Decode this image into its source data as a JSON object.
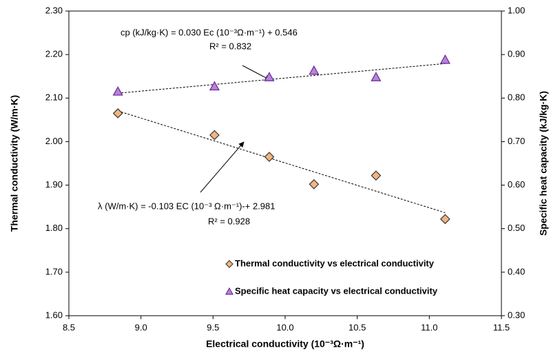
{
  "chart_data": {
    "type": "scatter",
    "xlabel": "Electrical conductivity  (10⁻³Ω·m⁻¹)",
    "ylabel": "Thermal conductivity  (W/m·K)",
    "y2label": "Specific heat capacity  (kJ/kg·K)",
    "xlim": [
      8.5,
      11.5
    ],
    "xticks": [
      {
        "value": 8.5,
        "label": "8.5"
      },
      {
        "value": 9.0,
        "label": "9.0"
      },
      {
        "value": 9.5,
        "label": "9.5"
      },
      {
        "value": 10.0,
        "label": "10.0"
      },
      {
        "value": 10.5,
        "label": "10.5"
      },
      {
        "value": 11.0,
        "label": "11.0"
      },
      {
        "value": 11.5,
        "label": "11.5"
      }
    ],
    "ylim": [
      1.6,
      2.3
    ],
    "yticks": [
      {
        "value": 1.6,
        "label": "1.60"
      },
      {
        "value": 1.7,
        "label": "1.70"
      },
      {
        "value": 1.8,
        "label": "1.80"
      },
      {
        "value": 1.9,
        "label": "1.90"
      },
      {
        "value": 2.0,
        "label": "2.00"
      },
      {
        "value": 2.1,
        "label": "2.10"
      },
      {
        "value": 2.2,
        "label": "2.20"
      },
      {
        "value": 2.3,
        "label": "2.30"
      }
    ],
    "y2lim": [
      0.3,
      1.0
    ],
    "y2ticks": [
      {
        "value": 0.3,
        "label": "0.30"
      },
      {
        "value": 0.4,
        "label": "0.40"
      },
      {
        "value": 0.5,
        "label": "0.50"
      },
      {
        "value": 0.6,
        "label": "0.60"
      },
      {
        "value": 0.7,
        "label": "0.70"
      },
      {
        "value": 0.8,
        "label": "0.80"
      },
      {
        "value": 0.9,
        "label": "0.90"
      },
      {
        "value": 1.0,
        "label": "1.00"
      }
    ],
    "grid": false,
    "legend": "lower right",
    "series": [
      {
        "name": "Thermal conductivity vs electrical conductivity",
        "marker": "diamond",
        "color": "#f6b57c",
        "edge": "#404040",
        "x": [
          8.84,
          9.51,
          9.89,
          10.2,
          10.63,
          11.11
        ],
        "values": [
          2.065,
          2.015,
          1.965,
          1.902,
          1.922,
          1.822
        ],
        "trendline": {
          "slope": -0.103,
          "intercept": 2.981
        }
      },
      {
        "name": "Specific heat capacity vs electrical conductivity",
        "marker": "triangle",
        "color": "#b784d6",
        "edge": "#7030a0",
        "axis": "y2",
        "x": [
          8.84,
          9.51,
          9.89,
          10.2,
          10.63,
          11.11
        ],
        "values": [
          0.815,
          0.827,
          0.848,
          0.863,
          0.848,
          0.888
        ],
        "trendline": {
          "slope": 0.03,
          "intercept": 0.546
        }
      }
    ],
    "annotations": [
      "cp (kJ/kg·K)  = 0.030 Ec (10⁻³Ω·m⁻¹) + 0.546",
      "R² = 0.832",
      "λ (W/m·K) = -0.103 EC (10⁻³ Ω·m⁻¹)-+ 2.981",
      "R² = 0.928"
    ]
  }
}
